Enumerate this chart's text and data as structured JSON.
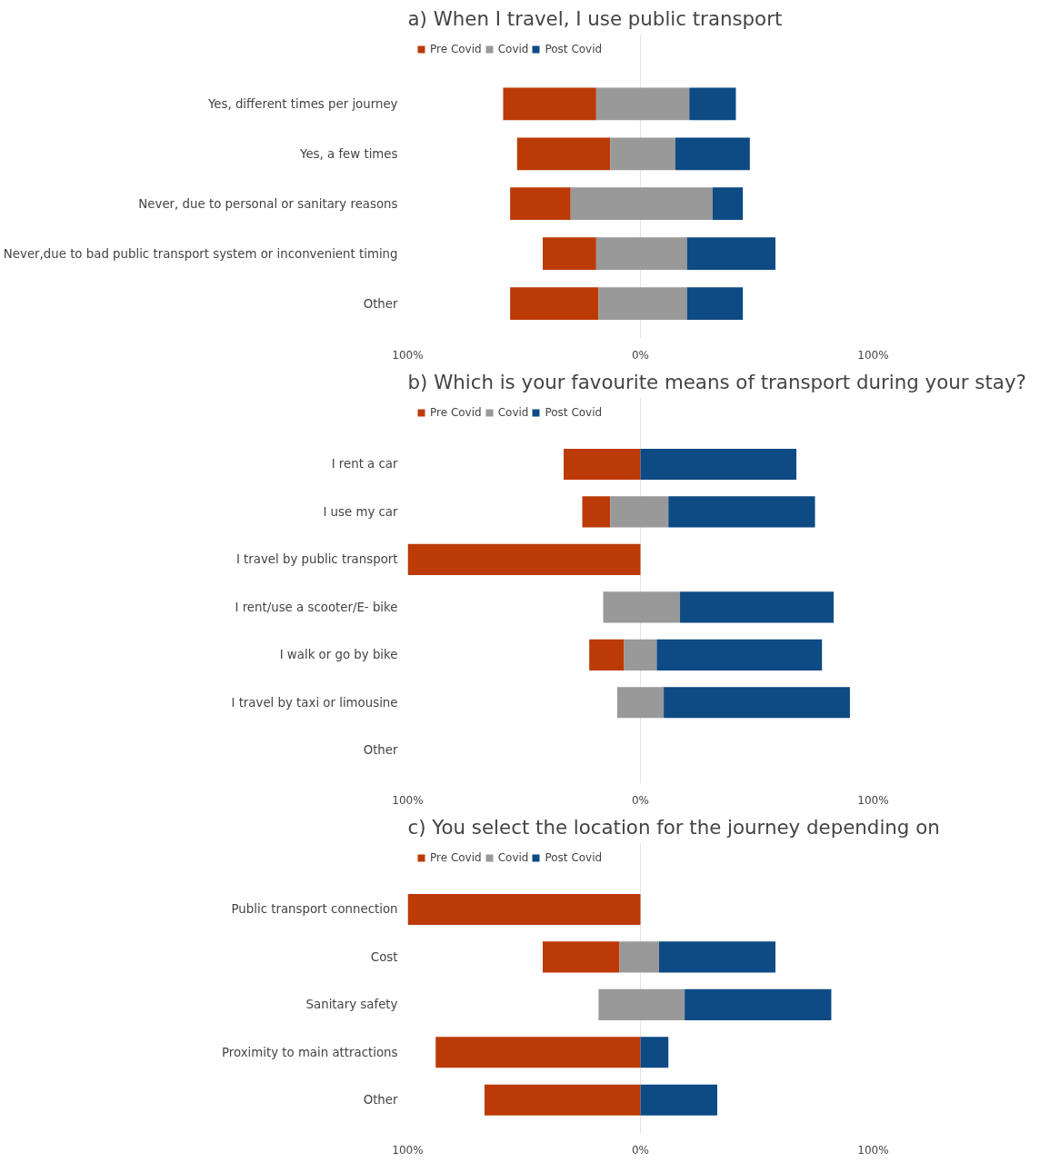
{
  "chart_data": [
    {
      "type": "bar",
      "orientation": "horizontal",
      "title": "a)    When I travel, I use public transport",
      "categories": [
        "Yes, different times per journey",
        "Yes, a few times",
        "Never, due to personal or sanitary reasons",
        "Never,due to bad public transport system or inconvenient timing",
        "Other"
      ],
      "series": [
        {
          "name": "Pre Covid",
          "color": "#bb3a06",
          "base": [
            -59,
            -53,
            -56,
            -42,
            -56
          ],
          "values": [
            40,
            40,
            26,
            23,
            38
          ]
        },
        {
          "name": "Covid",
          "color": "#999999",
          "base": [
            -19,
            -13,
            -30,
            -19,
            -18
          ],
          "values": [
            40,
            28,
            61,
            39,
            38
          ]
        },
        {
          "name": "Post Covid",
          "color": "#0e4a84",
          "base": [
            21,
            15,
            31,
            20,
            20
          ],
          "values": [
            20,
            32,
            13,
            38,
            24
          ]
        }
      ],
      "xlim": [
        -100,
        100
      ],
      "xticks": [
        {
          "value": -100,
          "label": "100%"
        },
        {
          "value": 0,
          "label": "0%"
        },
        {
          "value": 100,
          "label": "100%"
        }
      ],
      "grid": "x",
      "legend": "top left"
    },
    {
      "type": "bar",
      "orientation": "horizontal",
      "title": "b)    Which is your favourite means of transport during your stay?",
      "categories": [
        "I rent a car",
        "I use my car",
        "I travel by public transport",
        "I rent/use a scooter/E- bike",
        "I walk or go by bike",
        "I travel by taxi or limousine",
        "Other"
      ],
      "series": [
        {
          "name": "Pre Covid",
          "color": "#bb3a06",
          "base": [
            -33,
            -25,
            -100,
            null,
            -22,
            null,
            null
          ],
          "values": [
            33,
            12,
            100,
            null,
            15,
            null,
            null
          ]
        },
        {
          "name": "Covid",
          "color": "#999999",
          "base": [
            null,
            -13,
            null,
            -16,
            -7,
            -10,
            null
          ],
          "values": [
            null,
            25,
            null,
            33,
            14,
            20,
            null
          ]
        },
        {
          "name": "Post Covid",
          "color": "#0e4a84",
          "base": [
            0,
            12,
            null,
            17,
            7,
            10,
            null
          ],
          "values": [
            67,
            63,
            null,
            66,
            71,
            80,
            null
          ]
        }
      ],
      "xlim": [
        -100,
        100
      ],
      "xticks": [
        {
          "value": -100,
          "label": "100%"
        },
        {
          "value": 0,
          "label": "0%"
        },
        {
          "value": 100,
          "label": "100%"
        }
      ],
      "grid": "x",
      "legend": "top left"
    },
    {
      "type": "bar",
      "orientation": "horizontal",
      "title": "c)    You select the location for the journey depending on",
      "categories": [
        "Public transport connection",
        "Cost",
        "Sanitary safety",
        "Proximity to main attractions",
        "Other"
      ],
      "series": [
        {
          "name": "Pre Covid",
          "color": "#bb3a06",
          "base": [
            -100,
            -42,
            null,
            -88,
            -67
          ],
          "values": [
            100,
            33,
            null,
            88,
            67
          ]
        },
        {
          "name": "Covid",
          "color": "#999999",
          "base": [
            null,
            -9,
            -18,
            null,
            null
          ],
          "values": [
            null,
            17,
            37,
            null,
            null
          ]
        },
        {
          "name": "Post Covid",
          "color": "#0e4a84",
          "base": [
            null,
            8,
            19,
            0,
            0
          ],
          "values": [
            null,
            50,
            63,
            12,
            33
          ]
        }
      ],
      "xlim": [
        -100,
        100
      ],
      "xticks": [
        {
          "value": -100,
          "label": "100%"
        },
        {
          "value": 0,
          "label": "0%"
        },
        {
          "value": 100,
          "label": "100%"
        }
      ],
      "grid": "x",
      "legend": "top left"
    }
  ]
}
